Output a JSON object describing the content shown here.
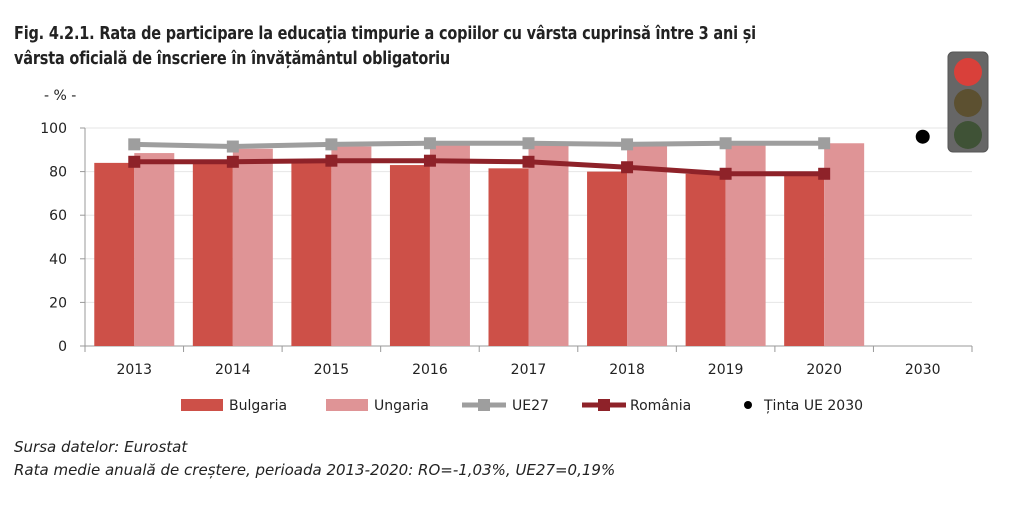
{
  "title_line1": "Fig. 4.2.1. Rata de participare la educația timpurie a copiilor cu vârsta cuprinsă între 3 ani și",
  "title_line2": "vârsta oficială de înscriere în învățământul obligatoriu",
  "source": "Sursa datelor: Eurostat",
  "note": "Rata medie anuală de creștere, perioada 2013-2020: RO=-1,03%, UE27=0,19%",
  "colors": {
    "bulgaria": "#cd5048",
    "ungaria": "#df9496",
    "ue27": "#9e9e9e",
    "romania": "#8e2229",
    "target": "#000000",
    "light_red": "#d9403a",
    "light_yellow": "#5c5030",
    "light_green": "#3f5236",
    "light_body": "#666666"
  },
  "chart_data": {
    "type": "bar",
    "title": "Fig. 4.2.1. Rata de participare la educația timpurie a copiilor cu vârsta cuprinsă între 3 ani și vârsta oficială de înscriere în învățământul obligatoriu",
    "ylabel": "- % -",
    "ylim": [
      0,
      100
    ],
    "yticks": [
      0,
      20,
      40,
      60,
      80,
      100
    ],
    "categories": [
      "2013",
      "2014",
      "2015",
      "2016",
      "2017",
      "2018",
      "2019",
      "2020",
      "2030"
    ],
    "series": [
      {
        "name": "Bulgaria",
        "type": "bar",
        "values": [
          84,
          83.5,
          84.5,
          83,
          81.5,
          80,
          79,
          79.5,
          null
        ]
      },
      {
        "name": "Ungaria",
        "type": "bar",
        "values": [
          88.5,
          90.5,
          91.5,
          92,
          92,
          92,
          92,
          93,
          null
        ]
      },
      {
        "name": "UE27",
        "type": "line",
        "values": [
          92.5,
          91.5,
          92.5,
          93,
          93,
          92.5,
          93,
          93,
          null
        ]
      },
      {
        "name": "România",
        "type": "line",
        "values": [
          84.5,
          84.5,
          85,
          85,
          84.5,
          82,
          79,
          79,
          null
        ]
      },
      {
        "name": "Ținta UE 2030",
        "type": "scatter",
        "values": [
          null,
          null,
          null,
          null,
          null,
          null,
          null,
          null,
          96
        ]
      }
    ],
    "legend_position": "bottom",
    "grid": true
  }
}
